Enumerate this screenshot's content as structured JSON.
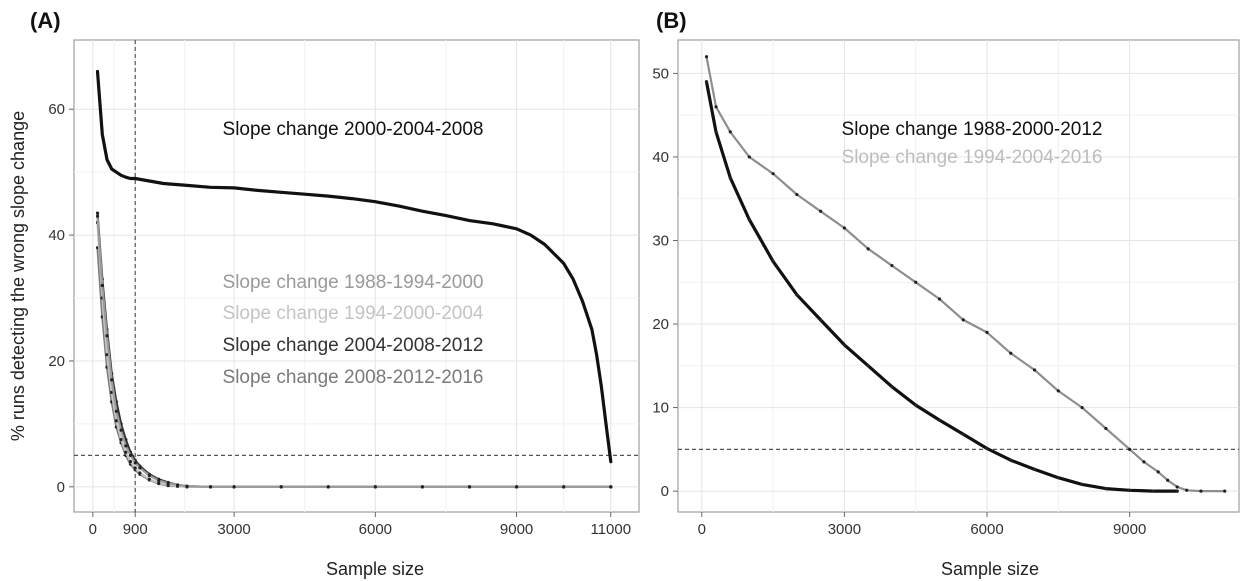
{
  "chart_data": [
    {
      "type": "line",
      "panel_label": "(A)",
      "xlabel": "Sample size",
      "ylabel": "% runs detecting the wrong slope change",
      "xlim": [
        -400,
        11600
      ],
      "ylim": [
        -4,
        71
      ],
      "x_ticks": [
        0,
        900,
        3000,
        6000,
        9000,
        11000
      ],
      "y_ticks": [
        0,
        20,
        40,
        60
      ],
      "grid": true,
      "reference_lines": {
        "vertical_x": 900,
        "horizontal_y": 5
      },
      "annotations": [
        {
          "text": "Slope change 2000-2004-2008",
          "color": "#111111"
        },
        {
          "text": "Slope change 1988-1994-2000",
          "color": "#9a9a9a"
        },
        {
          "text": "Slope change 1994-2000-2004",
          "color": "#c4c4c4"
        },
        {
          "text": "Slope change 2004-2008-2012",
          "color": "#333333"
        },
        {
          "text": "Slope change 2008-2012-2016",
          "color": "#7a7a7a"
        }
      ],
      "series": [
        {
          "color": "#111111",
          "x": [
            100,
            200,
            300,
            400,
            500,
            600,
            700,
            800,
            900,
            1200,
            1500,
            2000,
            2500,
            3000,
            3500,
            4000,
            4500,
            5000,
            5500,
            6000,
            6500,
            7000,
            7500,
            8000,
            8500,
            9000,
            9300,
            9600,
            9800,
            10000,
            10200,
            10400,
            10600,
            10700,
            10800,
            10900,
            11000
          ],
          "y": [
            66,
            56,
            52,
            50.5,
            50,
            49.5,
            49.2,
            49,
            49,
            48.6,
            48.2,
            47.9,
            47.6,
            47.5,
            47.1,
            46.8,
            46.5,
            46.2,
            45.8,
            45.3,
            44.6,
            43.8,
            43.1,
            42.3,
            41.8,
            41,
            40,
            38.5,
            37,
            35.5,
            33,
            29.5,
            25,
            21,
            16,
            10,
            4
          ]
        },
        {
          "color": "#9a9a9a",
          "x": [
            100,
            200,
            300,
            400,
            500,
            600,
            700,
            800,
            900,
            1000,
            1200,
            1400,
            1600,
            1800,
            2000,
            2500,
            3000,
            4000,
            5000,
            6000,
            7000,
            8000,
            9000,
            10000,
            11000
          ],
          "y": [
            43,
            32,
            24,
            17,
            12,
            9,
            6.5,
            5,
            3.8,
            3,
            1.8,
            1,
            0.6,
            0.3,
            0.1,
            0,
            0,
            0,
            0,
            0,
            0,
            0,
            0,
            0,
            0
          ]
        },
        {
          "color": "#c4c4c4",
          "x": [
            100,
            200,
            300,
            400,
            500,
            600,
            700,
            800,
            900,
            1000,
            1200,
            1400,
            1600,
            1800,
            2000,
            2500,
            3000,
            4000,
            5000,
            6000,
            7000,
            8000,
            9000,
            10000,
            11000
          ],
          "y": [
            42,
            30,
            21,
            15,
            10.5,
            7.5,
            5.5,
            4,
            3,
            2.2,
            1.2,
            0.6,
            0.3,
            0.1,
            0,
            0,
            0,
            0,
            0,
            0,
            0,
            0,
            0,
            0,
            0
          ]
        },
        {
          "color": "#333333",
          "x": [
            100,
            200,
            300,
            400,
            500,
            600,
            700,
            800,
            900,
            1000,
            1200,
            1400,
            1600,
            1800,
            2000,
            2500,
            3000,
            4000,
            5000,
            6000,
            7000,
            8000,
            9000,
            10000,
            11000
          ],
          "y": [
            43.5,
            33,
            25,
            18,
            13.5,
            10,
            7.5,
            5.5,
            4.2,
            3.3,
            2,
            1.2,
            0.7,
            0.3,
            0.1,
            0,
            0,
            0,
            0,
            0,
            0,
            0,
            0,
            0,
            0
          ]
        },
        {
          "color": "#7a7a7a",
          "x": [
            100,
            200,
            300,
            400,
            500,
            600,
            700,
            800,
            900,
            1000,
            1200,
            1400,
            1600,
            1800,
            2000,
            2500,
            3000,
            4000,
            5000,
            6000,
            7000,
            8000,
            9000,
            10000,
            11000
          ],
          "y": [
            38,
            27,
            19,
            13.5,
            9.5,
            7,
            5,
            3.6,
            2.7,
            2,
            1.1,
            0.5,
            0.2,
            0.1,
            0,
            0,
            0,
            0,
            0,
            0,
            0,
            0,
            0,
            0,
            0
          ]
        }
      ]
    },
    {
      "type": "line",
      "panel_label": "(B)",
      "xlabel": "Sample size",
      "ylabel": "",
      "xlim": [
        -500,
        11300
      ],
      "ylim": [
        -2.5,
        54
      ],
      "x_ticks": [
        0,
        3000,
        6000,
        9000
      ],
      "y_ticks": [
        0,
        10,
        20,
        30,
        40,
        50
      ],
      "grid": true,
      "reference_lines": {
        "horizontal_y": 5
      },
      "annotations": [
        {
          "text": "Slope change 1988-2000-2012",
          "color": "#111111"
        },
        {
          "text": "Slope change 1994-2004-2016",
          "color": "#bdbdbd"
        }
      ],
      "series": [
        {
          "color": "#111111",
          "x": [
            100,
            300,
            600,
            1000,
            1500,
            2000,
            2500,
            3000,
            3500,
            4000,
            4500,
            5000,
            5500,
            6000,
            6500,
            7000,
            7500,
            8000,
            8500,
            9000,
            9500,
            10000
          ],
          "y": [
            49,
            43,
            37.5,
            32.5,
            27.5,
            23.5,
            20.5,
            17.5,
            15,
            12.5,
            10.3,
            8.5,
            6.8,
            5.1,
            3.7,
            2.6,
            1.6,
            0.8,
            0.3,
            0.1,
            0,
            0
          ]
        },
        {
          "color": "#8e8e8e",
          "x": [
            100,
            300,
            600,
            1000,
            1500,
            2000,
            2500,
            3000,
            3500,
            4000,
            4500,
            5000,
            5500,
            6000,
            6500,
            7000,
            7500,
            8000,
            8500,
            9000,
            9300,
            9600,
            9800,
            10000,
            10200,
            10500,
            11000
          ],
          "y": [
            52,
            46,
            43,
            40,
            38,
            35.5,
            33.5,
            31.5,
            29,
            27,
            25,
            23,
            20.5,
            19,
            16.5,
            14.5,
            12,
            10,
            7.5,
            5,
            3.5,
            2.3,
            1.3,
            0.5,
            0.1,
            0,
            0
          ]
        }
      ]
    }
  ]
}
